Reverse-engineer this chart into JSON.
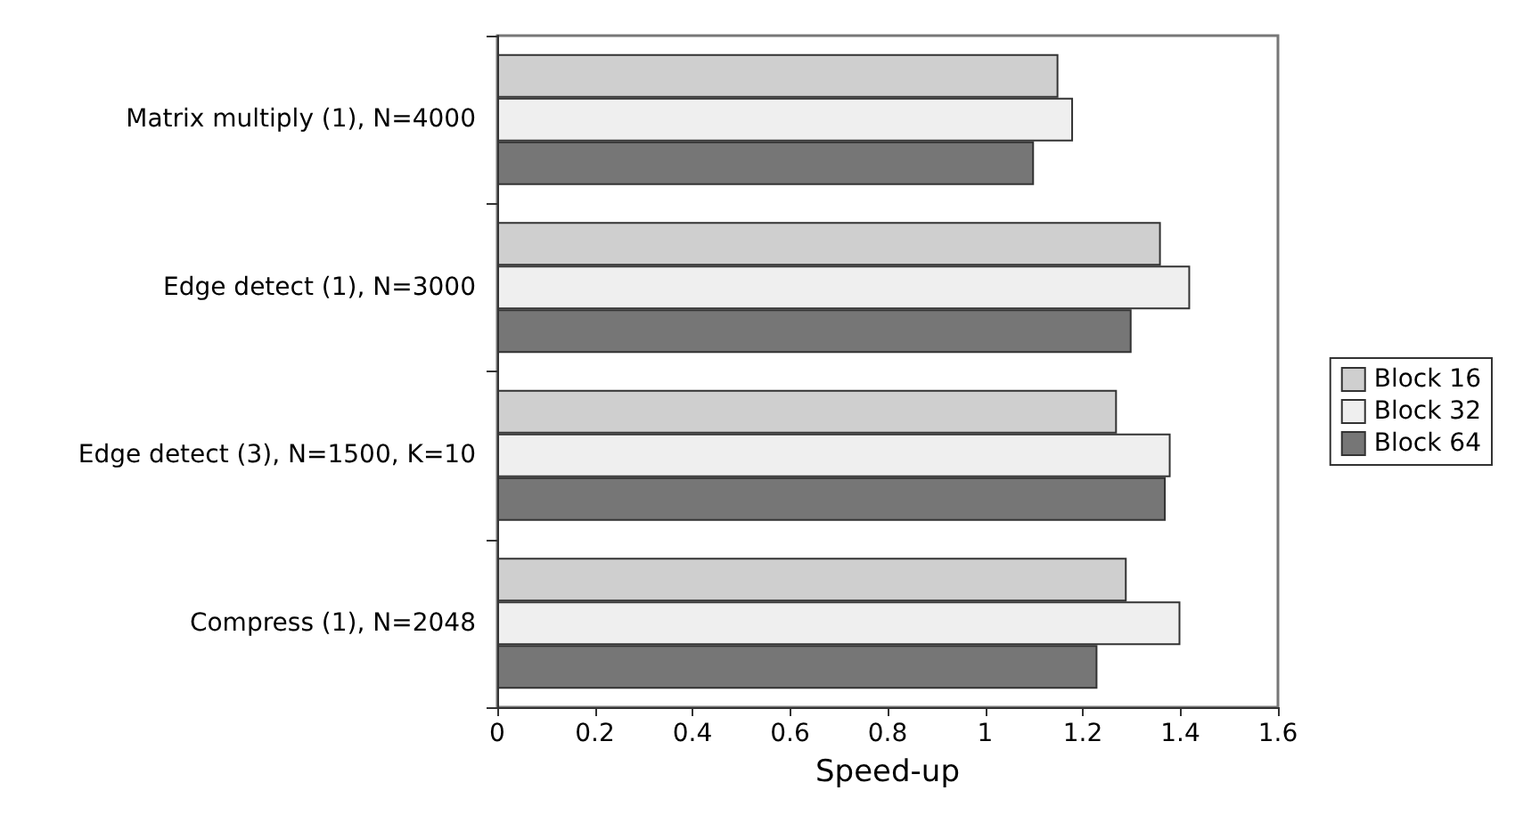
{
  "chart_data": {
    "type": "bar",
    "orientation": "horizontal",
    "xlabel": "Speed-up",
    "categories": [
      "Matrix multiply (1), N=4000",
      "Edge detect (1), N=3000",
      "Edge detect (3), N=1500, K=10",
      "Compress (1), N=2048"
    ],
    "series": [
      {
        "name": "Block 16",
        "color": "#cfcfcf",
        "values": [
          1.15,
          1.36,
          1.27,
          1.29
        ]
      },
      {
        "name": "Block 32",
        "color": "#efefef",
        "values": [
          1.18,
          1.42,
          1.38,
          1.4
        ]
      },
      {
        "name": "Block 64",
        "color": "#767676",
        "values": [
          1.1,
          1.3,
          1.37,
          1.23
        ]
      }
    ],
    "xlim": [
      0,
      1.6
    ],
    "xticks": [
      0,
      0.2,
      0.4,
      0.6,
      0.8,
      1,
      1.2,
      1.4,
      1.6
    ],
    "grid": false,
    "legend": "right"
  }
}
